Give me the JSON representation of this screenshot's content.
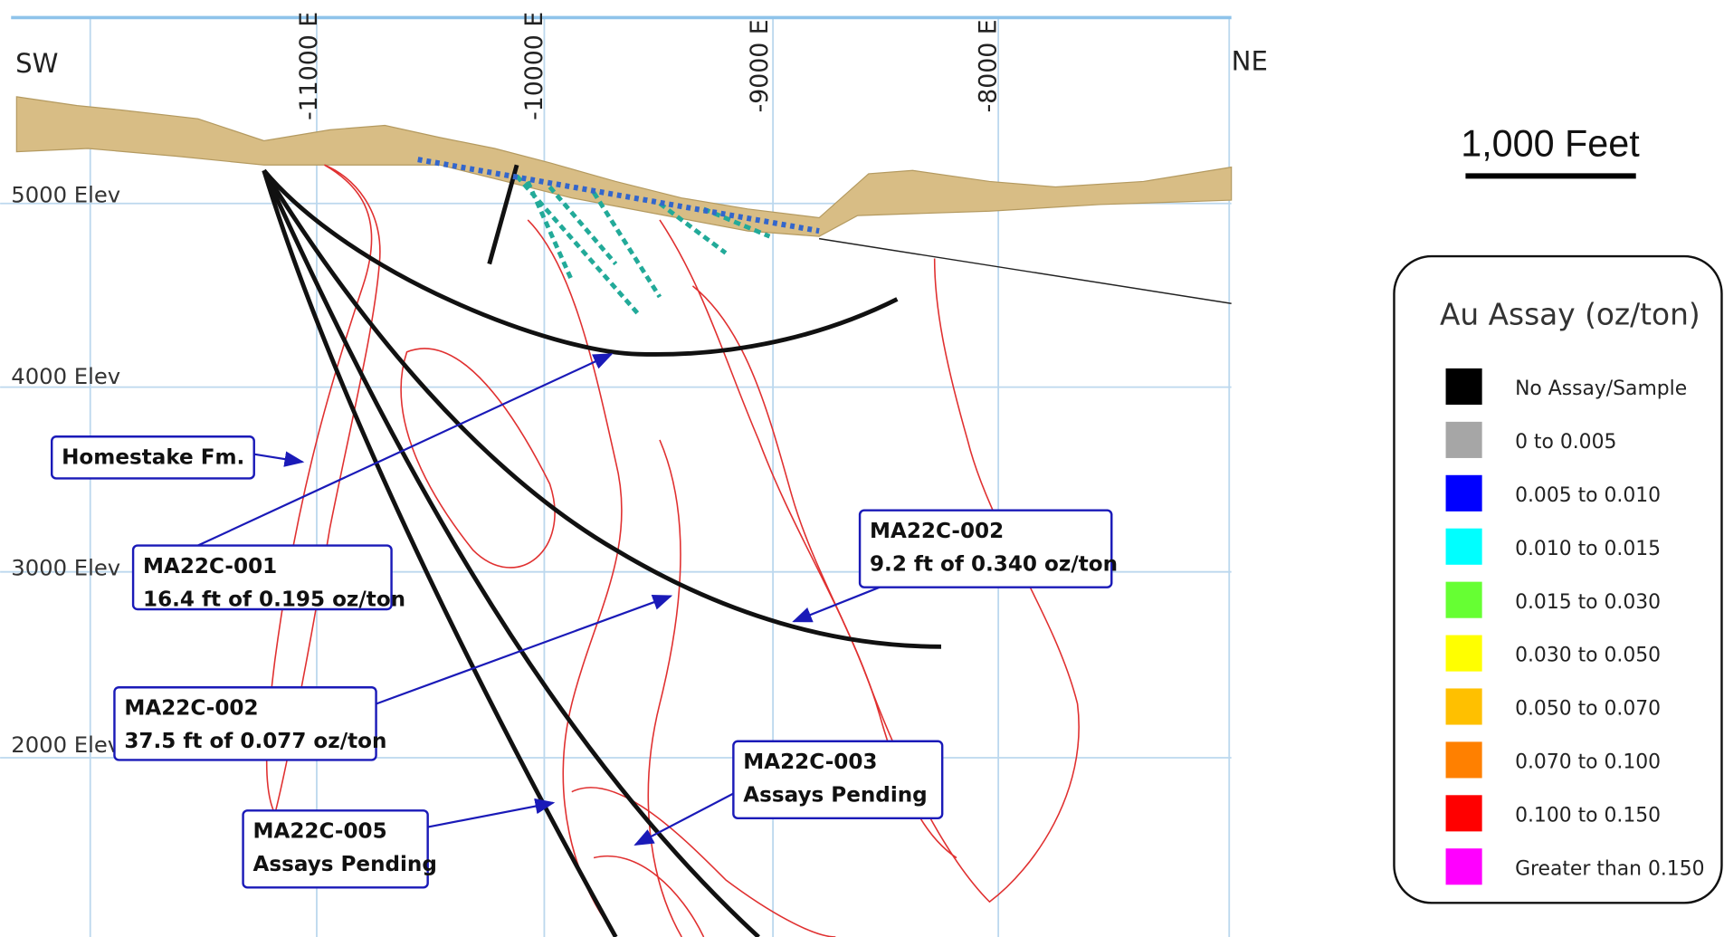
{
  "section": {
    "directions": [
      "SW",
      "NE"
    ],
    "eastings": [
      "-11000 E",
      "-10000 E",
      "-9000 E",
      "-8000 E"
    ],
    "elevations": [
      "5000 Elev",
      "4000 Elev",
      "3000 Elev",
      "2000 Elev"
    ]
  },
  "callouts": [
    {
      "lines": [
        "Homestake Fm."
      ]
    },
    {
      "lines": [
        "MA22C-001",
        "16.4 ft of 0.195 oz/ton"
      ]
    },
    {
      "lines": [
        "MA22C-002",
        "9.2 ft of 0.340 oz/ton"
      ]
    },
    {
      "lines": [
        "MA22C-002",
        "37.5 ft of 0.077 oz/ton"
      ]
    },
    {
      "lines": [
        "MA22C-003",
        "Assays Pending"
      ]
    },
    {
      "lines": [
        "MA22C-005",
        "Assays Pending"
      ]
    }
  ],
  "scale_bar": {
    "label": "1,000 Feet"
  },
  "legend": {
    "title": "Au Assay (oz/ton)",
    "items": [
      {
        "label": "No Assay/Sample",
        "color": "#000000"
      },
      {
        "label": "0 to 0.005",
        "color": "#a6a6a6"
      },
      {
        "label": "0.005  to 0.010",
        "color": "#0000ff"
      },
      {
        "label": "0.010  to 0.015",
        "color": "#00ffff"
      },
      {
        "label": "0.015  to 0.030",
        "color": "#66ff33"
      },
      {
        "label": "0.030  to 0.050",
        "color": "#ffff00"
      },
      {
        "label": "0.050  to 0.070",
        "color": "#ffc000"
      },
      {
        "label": "0.070  to 0.100",
        "color": "#ff8000"
      },
      {
        "label": "0.100  to 0.150",
        "color": "#ff0000"
      },
      {
        "label": "Greater than 0.150",
        "color": "#ff00ff"
      }
    ]
  }
}
